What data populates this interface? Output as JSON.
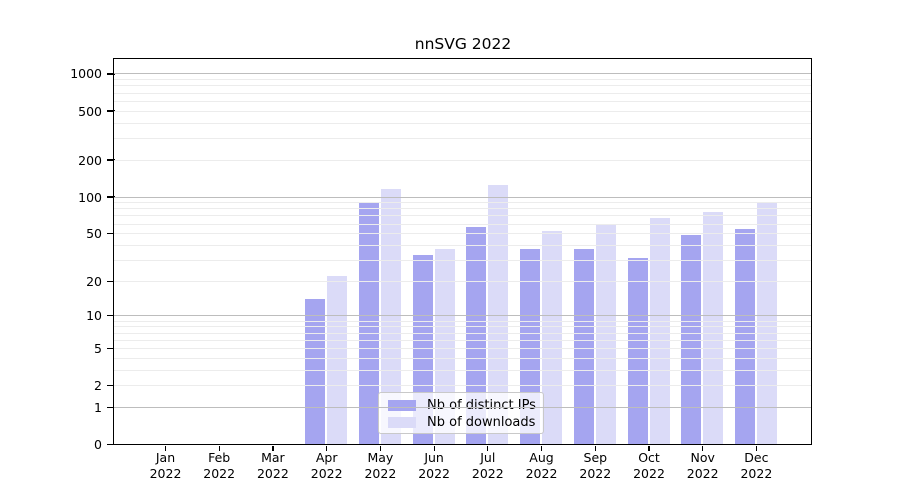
{
  "chart_data": {
    "type": "bar",
    "title": "nnSVG 2022",
    "categories": [
      "Jan",
      "Feb",
      "Mar",
      "Apr",
      "May",
      "Jun",
      "Jul",
      "Aug",
      "Sep",
      "Oct",
      "Nov",
      "Dec"
    ],
    "year_label": "2022",
    "series": [
      {
        "name": "Nb of distinct IPs",
        "color": "#a5a5f0",
        "values": [
          0,
          0,
          0,
          14,
          88,
          33,
          56,
          37,
          37,
          31,
          48,
          54
        ]
      },
      {
        "name": "Nb of downloads",
        "color": "#dbdbf8",
        "values": [
          0,
          0,
          0,
          22,
          115,
          37,
          124,
          52,
          60,
          67,
          74,
          88
        ]
      }
    ],
    "y_scale": "log10(value+1)",
    "y_ticks": [
      0,
      1,
      2,
      5,
      10,
      20,
      50,
      100,
      200,
      500,
      1000
    ],
    "major_gridlines": [
      1,
      10,
      100,
      1000
    ],
    "minor_gridlines": [
      2,
      3,
      4,
      5,
      6,
      7,
      8,
      9,
      20,
      30,
      40,
      50,
      60,
      70,
      80,
      90,
      200,
      300,
      400,
      500,
      600,
      700,
      800,
      900
    ],
    "ylim": [
      0,
      1350
    ],
    "grid": "on",
    "legend_position": "inside-bottom-center"
  },
  "colors": {
    "background": "#ffffff",
    "axis": "#000000",
    "major_grid": "#bdbdbd",
    "minor_grid": "#ececec",
    "legend_border": "#c9c9c9"
  }
}
